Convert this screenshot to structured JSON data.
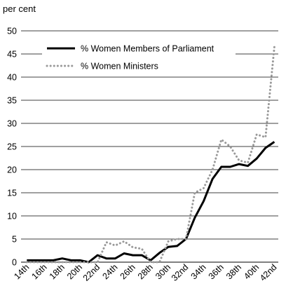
{
  "chart_data": {
    "type": "line",
    "title": "",
    "unit_label": "per cent",
    "xlabel": "",
    "ylabel": "",
    "ylim": [
      0,
      50
    ],
    "y_ticks": [
      0,
      5,
      10,
      15,
      20,
      25,
      30,
      35,
      40,
      45,
      50
    ],
    "grid": "horizontal",
    "legend_position": "top-left",
    "x": [
      "14th",
      "15th",
      "16th",
      "17th",
      "18th",
      "19th",
      "20th",
      "21st",
      "22nd",
      "23rd",
      "24th",
      "25th",
      "26th",
      "27th",
      "28th",
      "29th",
      "30th",
      "31st",
      "32nd",
      "33rd",
      "34th",
      "35th",
      "36th",
      "37th",
      "38th",
      "39th",
      "40th",
      "41st",
      "42nd"
    ],
    "x_tick_labels": [
      "14th",
      "16th",
      "18th",
      "20th",
      "22nd",
      "24th",
      "26th",
      "28th",
      "30th",
      "32nd",
      "34th",
      "36th",
      "38th",
      "40th",
      "42nd"
    ],
    "series": [
      {
        "name": "% Women Members of Parliament",
        "style": "solid",
        "color": "#000000",
        "values": [
          0.4,
          0.4,
          0.4,
          0.4,
          0.8,
          0.4,
          0.4,
          0.0,
          1.5,
          0.8,
          0.8,
          1.9,
          1.5,
          1.5,
          0.4,
          2.0,
          3.3,
          3.5,
          5.0,
          9.6,
          13.2,
          18.0,
          20.6,
          20.6,
          21.2,
          20.8,
          22.4,
          24.7,
          26.0
        ]
      },
      {
        "name": "% Women Ministers",
        "style": "dotted",
        "color": "#999999",
        "values": [
          0.0,
          0.0,
          0.0,
          0.0,
          0.0,
          0.0,
          0.0,
          0.0,
          0.0,
          4.3,
          3.6,
          4.5,
          3.2,
          2.9,
          0.0,
          0.0,
          4.5,
          5.0,
          5.0,
          15.0,
          16.0,
          20.0,
          26.5,
          25.0,
          22.0,
          21.5,
          27.6,
          27.0,
          46.5
        ]
      }
    ]
  }
}
